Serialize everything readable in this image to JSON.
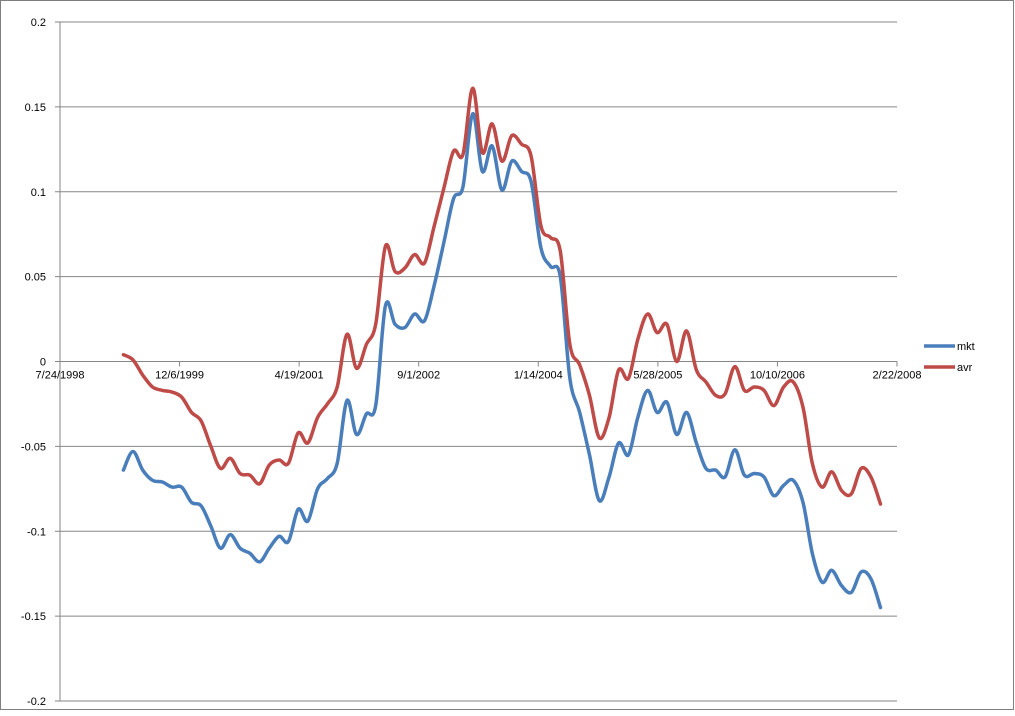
{
  "chart_data": {
    "type": "line",
    "title": "",
    "xlabel": "",
    "ylabel": "",
    "x_axis": {
      "type": "date",
      "ticks": [
        "7/24/1998",
        "12/6/1999",
        "4/19/2001",
        "9/1/2002",
        "1/14/2004",
        "5/28/2005",
        "10/10/2006",
        "2/22/2008"
      ],
      "range": [
        "1998-07-24",
        "2008-02-22"
      ]
    },
    "y_axis": {
      "ticks": [
        "0.2",
        "0.15",
        "0.1",
        "0.05",
        "0",
        "-0.05",
        "-0.1",
        "-0.15",
        "-0.2"
      ],
      "range": [
        -0.2,
        0.2
      ]
    },
    "grid": {
      "horizontal": true,
      "vertical": false
    },
    "legend": {
      "position": "right"
    },
    "series": [
      {
        "name": "mkt",
        "color": "#4a7ebb",
        "points": [
          [
            "1999-04-15",
            -0.064
          ],
          [
            "1999-05-25",
            -0.053
          ],
          [
            "1999-07-05",
            -0.064
          ],
          [
            "1999-08-15",
            -0.07
          ],
          [
            "1999-09-25",
            -0.071
          ],
          [
            "1999-11-05",
            -0.074
          ],
          [
            "1999-12-15",
            -0.074
          ],
          [
            "2000-01-25",
            -0.083
          ],
          [
            "2000-03-05",
            -0.085
          ],
          [
            "2000-04-15",
            -0.097
          ],
          [
            "2000-05-25",
            -0.11
          ],
          [
            "2000-07-05",
            -0.102
          ],
          [
            "2000-08-15",
            -0.11
          ],
          [
            "2000-09-25",
            -0.113
          ],
          [
            "2000-11-05",
            -0.118
          ],
          [
            "2000-12-15",
            -0.11
          ],
          [
            "2001-01-25",
            -0.103
          ],
          [
            "2001-03-05",
            -0.106
          ],
          [
            "2001-04-15",
            -0.087
          ],
          [
            "2001-05-25",
            -0.094
          ],
          [
            "2001-07-05",
            -0.075
          ],
          [
            "2001-08-15",
            -0.069
          ],
          [
            "2001-09-25",
            -0.06
          ],
          [
            "2001-11-05",
            -0.023
          ],
          [
            "2001-12-15",
            -0.043
          ],
          [
            "2002-01-25",
            -0.031
          ],
          [
            "2002-03-05",
            -0.026
          ],
          [
            "2002-04-15",
            0.033
          ],
          [
            "2002-05-25",
            0.022
          ],
          [
            "2002-07-05",
            0.02
          ],
          [
            "2002-08-15",
            0.028
          ],
          [
            "2002-09-25",
            0.024
          ],
          [
            "2002-11-05",
            0.045
          ],
          [
            "2002-12-15",
            0.07
          ],
          [
            "2003-01-25",
            0.096
          ],
          [
            "2003-03-05",
            0.103
          ],
          [
            "2003-04-15",
            0.146
          ],
          [
            "2003-05-25",
            0.112
          ],
          [
            "2003-07-05",
            0.127
          ],
          [
            "2003-08-15",
            0.101
          ],
          [
            "2003-09-25",
            0.118
          ],
          [
            "2003-11-05",
            0.112
          ],
          [
            "2003-12-15",
            0.106
          ],
          [
            "2004-01-25",
            0.067
          ],
          [
            "2004-03-05",
            0.056
          ],
          [
            "2004-04-15",
            0.05
          ],
          [
            "2004-05-25",
            -0.01
          ],
          [
            "2004-07-05",
            -0.03
          ],
          [
            "2004-08-15",
            -0.055
          ],
          [
            "2004-09-25",
            -0.082
          ],
          [
            "2004-11-05",
            -0.068
          ],
          [
            "2004-12-15",
            -0.048
          ],
          [
            "2005-01-25",
            -0.055
          ],
          [
            "2005-03-05",
            -0.033
          ],
          [
            "2005-04-15",
            -0.017
          ],
          [
            "2005-05-25",
            -0.03
          ],
          [
            "2005-07-05",
            -0.024
          ],
          [
            "2005-08-15",
            -0.043
          ],
          [
            "2005-09-25",
            -0.03
          ],
          [
            "2005-11-05",
            -0.048
          ],
          [
            "2005-12-15",
            -0.063
          ],
          [
            "2006-01-25",
            -0.064
          ],
          [
            "2006-03-05",
            -0.068
          ],
          [
            "2006-04-15",
            -0.052
          ],
          [
            "2006-05-25",
            -0.067
          ],
          [
            "2006-07-05",
            -0.066
          ],
          [
            "2006-08-15",
            -0.068
          ],
          [
            "2006-09-25",
            -0.079
          ],
          [
            "2006-11-05",
            -0.073
          ],
          [
            "2006-12-15",
            -0.07
          ],
          [
            "2007-01-25",
            -0.083
          ],
          [
            "2007-03-05",
            -0.113
          ],
          [
            "2007-04-15",
            -0.13
          ],
          [
            "2007-05-25",
            -0.123
          ],
          [
            "2007-07-05",
            -0.132
          ],
          [
            "2007-08-15",
            -0.136
          ],
          [
            "2007-09-25",
            -0.124
          ],
          [
            "2007-11-05",
            -0.128
          ],
          [
            "2007-12-15",
            -0.145
          ]
        ]
      },
      {
        "name": "avr",
        "color": "#be4b48",
        "points": [
          [
            "1999-04-15",
            0.004
          ],
          [
            "1999-05-25",
            0.001
          ],
          [
            "1999-07-05",
            -0.008
          ],
          [
            "1999-08-15",
            -0.015
          ],
          [
            "1999-09-25",
            -0.017
          ],
          [
            "1999-11-05",
            -0.018
          ],
          [
            "1999-12-15",
            -0.021
          ],
          [
            "2000-01-25",
            -0.03
          ],
          [
            "2000-03-05",
            -0.035
          ],
          [
            "2000-04-15",
            -0.05
          ],
          [
            "2000-05-25",
            -0.063
          ],
          [
            "2000-07-05",
            -0.057
          ],
          [
            "2000-08-15",
            -0.066
          ],
          [
            "2000-09-25",
            -0.067
          ],
          [
            "2000-11-05",
            -0.072
          ],
          [
            "2000-12-15",
            -0.061
          ],
          [
            "2001-01-25",
            -0.058
          ],
          [
            "2001-03-05",
            -0.06
          ],
          [
            "2001-04-15",
            -0.042
          ],
          [
            "2001-05-25",
            -0.048
          ],
          [
            "2001-07-05",
            -0.033
          ],
          [
            "2001-08-15",
            -0.025
          ],
          [
            "2001-09-25",
            -0.015
          ],
          [
            "2001-11-05",
            0.016
          ],
          [
            "2001-12-15",
            -0.004
          ],
          [
            "2002-01-25",
            0.01
          ],
          [
            "2002-03-05",
            0.022
          ],
          [
            "2002-04-15",
            0.068
          ],
          [
            "2002-05-25",
            0.053
          ],
          [
            "2002-07-05",
            0.055
          ],
          [
            "2002-08-15",
            0.063
          ],
          [
            "2002-09-25",
            0.058
          ],
          [
            "2002-11-05",
            0.08
          ],
          [
            "2002-12-15",
            0.102
          ],
          [
            "2003-01-25",
            0.124
          ],
          [
            "2003-03-05",
            0.122
          ],
          [
            "2003-04-15",
            0.161
          ],
          [
            "2003-05-25",
            0.123
          ],
          [
            "2003-07-05",
            0.14
          ],
          [
            "2003-08-15",
            0.118
          ],
          [
            "2003-09-25",
            0.133
          ],
          [
            "2003-11-05",
            0.128
          ],
          [
            "2003-12-15",
            0.121
          ],
          [
            "2004-01-25",
            0.08
          ],
          [
            "2004-03-05",
            0.073
          ],
          [
            "2004-04-15",
            0.065
          ],
          [
            "2004-05-25",
            0.01
          ],
          [
            "2004-07-05",
            -0.002
          ],
          [
            "2004-08-15",
            -0.02
          ],
          [
            "2004-09-25",
            -0.045
          ],
          [
            "2004-11-05",
            -0.033
          ],
          [
            "2004-12-15",
            -0.005
          ],
          [
            "2005-01-25",
            -0.01
          ],
          [
            "2005-03-05",
            0.013
          ],
          [
            "2005-04-15",
            0.028
          ],
          [
            "2005-05-25",
            0.017
          ],
          [
            "2005-07-05",
            0.022
          ],
          [
            "2005-08-15",
            0.0
          ],
          [
            "2005-09-25",
            0.018
          ],
          [
            "2005-11-05",
            -0.005
          ],
          [
            "2005-12-15",
            -0.012
          ],
          [
            "2006-01-25",
            -0.02
          ],
          [
            "2006-03-05",
            -0.019
          ],
          [
            "2006-04-15",
            -0.003
          ],
          [
            "2006-05-25",
            -0.017
          ],
          [
            "2006-07-05",
            -0.015
          ],
          [
            "2006-08-15",
            -0.017
          ],
          [
            "2006-09-25",
            -0.026
          ],
          [
            "2006-11-05",
            -0.015
          ],
          [
            "2006-12-15",
            -0.012
          ],
          [
            "2007-01-25",
            -0.027
          ],
          [
            "2007-03-05",
            -0.06
          ],
          [
            "2007-04-15",
            -0.074
          ],
          [
            "2007-05-25",
            -0.065
          ],
          [
            "2007-07-05",
            -0.076
          ],
          [
            "2007-08-15",
            -0.078
          ],
          [
            "2007-09-25",
            -0.063
          ],
          [
            "2007-11-05",
            -0.068
          ],
          [
            "2007-12-15",
            -0.084
          ]
        ]
      }
    ]
  }
}
